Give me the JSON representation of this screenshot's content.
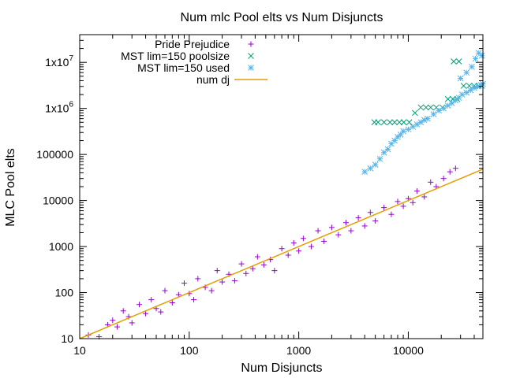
{
  "chart_data": {
    "type": "scatter",
    "title": "Num mlc Pool elts vs Num Disjuncts",
    "xlabel": "Num Disjuncts",
    "ylabel": "MLC Pool elts",
    "x_scale": "log",
    "y_scale": "log",
    "xlim": [
      10,
      48000
    ],
    "ylim": [
      10,
      40000000
    ],
    "x_ticks": [
      {
        "value": 10,
        "label": "10"
      },
      {
        "value": 100,
        "label": "100"
      },
      {
        "value": 1000,
        "label": "1000"
      },
      {
        "value": 10000,
        "label": "10000"
      }
    ],
    "y_ticks": [
      {
        "value": 10,
        "label": "10"
      },
      {
        "value": 100,
        "label": "100"
      },
      {
        "value": 1000,
        "label": "1000"
      },
      {
        "value": 10000,
        "label": "10000"
      },
      {
        "value": 100000,
        "label": "100000"
      },
      {
        "value": 1000000,
        "label": "1x10^6",
        "base": "1x10",
        "exp": "6"
      },
      {
        "value": 10000000,
        "label": "1x10^7",
        "base": "1x10",
        "exp": "7"
      }
    ],
    "grid": false,
    "legend_position": "top-right",
    "series": [
      {
        "name": "Pride Prejudice",
        "marker": "plus",
        "color": "#9400d3",
        "description": "dense cloud approximately following y = x with scatter about one order of magnitude",
        "points": [
          [
            12,
            12
          ],
          [
            15,
            11
          ],
          [
            18,
            20
          ],
          [
            20,
            25
          ],
          [
            22,
            18
          ],
          [
            25,
            40
          ],
          [
            28,
            30
          ],
          [
            30,
            22
          ],
          [
            35,
            55
          ],
          [
            40,
            35
          ],
          [
            45,
            70
          ],
          [
            50,
            45
          ],
          [
            55,
            38
          ],
          [
            60,
            110
          ],
          [
            70,
            60
          ],
          [
            80,
            90
          ],
          [
            90,
            160
          ],
          [
            100,
            95
          ],
          [
            110,
            70
          ],
          [
            120,
            200
          ],
          [
            140,
            130
          ],
          [
            160,
            110
          ],
          [
            180,
            300
          ],
          [
            200,
            170
          ],
          [
            230,
            250
          ],
          [
            260,
            180
          ],
          [
            300,
            420
          ],
          [
            330,
            260
          ],
          [
            380,
            330
          ],
          [
            420,
            600
          ],
          [
            480,
            400
          ],
          [
            550,
            520
          ],
          [
            600,
            300
          ],
          [
            700,
            900
          ],
          [
            800,
            650
          ],
          [
            900,
            1200
          ],
          [
            1000,
            800
          ],
          [
            1100,
            1500
          ],
          [
            1300,
            1000
          ],
          [
            1500,
            2200
          ],
          [
            1700,
            1300
          ],
          [
            2000,
            2600
          ],
          [
            2300,
            1800
          ],
          [
            2700,
            3300
          ],
          [
            3000,
            2200
          ],
          [
            3500,
            4200
          ],
          [
            4000,
            2800
          ],
          [
            4500,
            5500
          ],
          [
            5000,
            3600
          ],
          [
            6000,
            7000
          ],
          [
            7000,
            5000
          ],
          [
            8000,
            9500
          ],
          [
            9000,
            7500
          ],
          [
            10000,
            11000
          ],
          [
            11000,
            9000
          ],
          [
            12000,
            16000
          ],
          [
            14000,
            12000
          ],
          [
            16000,
            25000
          ],
          [
            18000,
            20000
          ],
          [
            21000,
            30000
          ],
          [
            24000,
            42000
          ],
          [
            27000,
            50000
          ]
        ]
      },
      {
        "name": "MST lim=150 poolsize",
        "marker": "cross",
        "color": "#009e73",
        "points": [
          [
            4900,
            500000
          ],
          [
            5300,
            500000
          ],
          [
            6000,
            500000
          ],
          [
            6800,
            500000
          ],
          [
            7500,
            500000
          ],
          [
            8300,
            500000
          ],
          [
            9100,
            500000
          ],
          [
            10200,
            500000
          ],
          [
            11500,
            800000
          ],
          [
            13000,
            1050000
          ],
          [
            14500,
            1050000
          ],
          [
            16000,
            1050000
          ],
          [
            18000,
            1050000
          ],
          [
            20500,
            1050000
          ],
          [
            23000,
            1600000
          ],
          [
            25500,
            1600000
          ],
          [
            28000,
            1600000
          ],
          [
            26000,
            10500000
          ],
          [
            29000,
            10500000
          ],
          [
            32000,
            3100000
          ],
          [
            36000,
            3100000
          ],
          [
            40000,
            3100000
          ],
          [
            44000,
            3100000
          ],
          [
            47000,
            3100000
          ]
        ]
      },
      {
        "name": "MST lim=150 used",
        "marker": "star",
        "color": "#56b4e9",
        "points": [
          [
            4000,
            42000
          ],
          [
            4500,
            50000
          ],
          [
            5000,
            60000
          ],
          [
            5500,
            80000
          ],
          [
            6000,
            110000
          ],
          [
            6500,
            130000
          ],
          [
            7000,
            170000
          ],
          [
            7500,
            200000
          ],
          [
            8000,
            240000
          ],
          [
            8500,
            270000
          ],
          [
            9000,
            320000
          ],
          [
            10000,
            350000
          ],
          [
            11000,
            400000
          ],
          [
            12000,
            450000
          ],
          [
            13000,
            500000
          ],
          [
            14000,
            560000
          ],
          [
            15000,
            600000
          ],
          [
            17000,
            750000
          ],
          [
            19000,
            900000
          ],
          [
            21000,
            1000000
          ],
          [
            23000,
            1150000
          ],
          [
            25000,
            1300000
          ],
          [
            27000,
            1500000
          ],
          [
            29000,
            1700000
          ],
          [
            31000,
            2000000
          ],
          [
            34000,
            2200000
          ],
          [
            37000,
            2500000
          ],
          [
            40000,
            2800000
          ],
          [
            43000,
            3000000
          ],
          [
            46000,
            3200000
          ],
          [
            48000,
            3400000
          ],
          [
            34000,
            6000000
          ],
          [
            38000,
            8000000
          ],
          [
            41000,
            12000000
          ],
          [
            44000,
            16000000
          ],
          [
            47000,
            14000000
          ],
          [
            30000,
            4500000
          ]
        ]
      },
      {
        "name": "num dj",
        "marker": "line",
        "color": "#e69f00",
        "x": [
          10,
          48000
        ],
        "y": [
          10,
          48000
        ]
      }
    ]
  }
}
